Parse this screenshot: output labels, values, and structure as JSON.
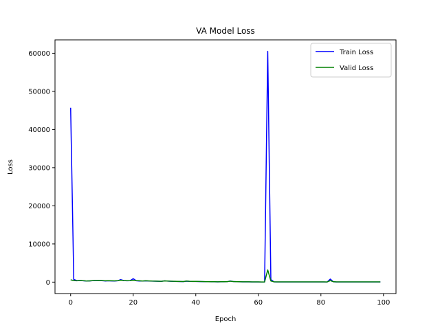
{
  "chart_data": {
    "type": "line",
    "title": "VA Model Loss",
    "xlabel": "Epoch",
    "ylabel": "Loss",
    "xlim": [
      -5,
      104
    ],
    "ylim": [
      -3000,
      63500
    ],
    "xticks": [
      0,
      20,
      40,
      60,
      80,
      100
    ],
    "yticks": [
      0,
      10000,
      20000,
      30000,
      40000,
      50000,
      60000
    ],
    "grid": false,
    "legend_position": "top-right",
    "x": [
      0,
      1,
      2,
      3,
      4,
      5,
      6,
      7,
      8,
      9,
      10,
      11,
      12,
      13,
      14,
      15,
      16,
      17,
      18,
      19,
      20,
      21,
      22,
      23,
      24,
      25,
      26,
      27,
      28,
      29,
      30,
      31,
      32,
      33,
      34,
      35,
      36,
      37,
      38,
      39,
      40,
      41,
      42,
      43,
      44,
      45,
      46,
      47,
      48,
      49,
      50,
      51,
      52,
      53,
      54,
      55,
      56,
      57,
      58,
      59,
      60,
      61,
      62,
      63,
      64,
      65,
      66,
      67,
      68,
      69,
      70,
      71,
      72,
      73,
      74,
      75,
      76,
      77,
      78,
      79,
      80,
      81,
      82,
      83,
      84,
      85,
      86,
      87,
      88,
      89,
      90,
      91,
      92,
      93,
      94,
      95,
      96,
      97,
      98,
      99
    ],
    "series": [
      {
        "name": "Train Loss",
        "color": "#0000ff",
        "values": [
          45700,
          700,
          400,
          450,
          350,
          300,
          320,
          380,
          420,
          450,
          380,
          300,
          350,
          320,
          300,
          350,
          650,
          400,
          350,
          380,
          900,
          350,
          300,
          280,
          330,
          300,
          260,
          240,
          220,
          200,
          330,
          260,
          230,
          200,
          180,
          150,
          130,
          250,
          200,
          180,
          180,
          160,
          140,
          120,
          100,
          90,
          80,
          70,
          80,
          90,
          100,
          300,
          150,
          100,
          80,
          70,
          60,
          60,
          50,
          50,
          40,
          30,
          30,
          60500,
          700,
          60,
          50,
          50,
          40,
          40,
          40,
          40,
          40,
          40,
          40,
          40,
          40,
          40,
          40,
          40,
          40,
          40,
          30,
          800,
          80,
          50,
          40,
          40,
          40,
          40,
          40,
          40,
          40,
          40,
          40,
          40,
          40,
          40,
          40,
          40
        ]
      },
      {
        "name": "Valid Loss",
        "color": "#008000",
        "values": [
          600,
          400,
          350,
          450,
          380,
          300,
          320,
          400,
          450,
          480,
          420,
          350,
          380,
          350,
          330,
          380,
          500,
          420,
          380,
          400,
          500,
          400,
          350,
          300,
          350,
          320,
          280,
          260,
          240,
          220,
          320,
          280,
          250,
          220,
          200,
          170,
          150,
          280,
          230,
          210,
          200,
          180,
          160,
          140,
          120,
          110,
          100,
          90,
          100,
          110,
          120,
          250,
          160,
          120,
          100,
          90,
          80,
          80,
          70,
          70,
          60,
          50,
          50,
          3200,
          300,
          80,
          70,
          70,
          60,
          60,
          60,
          60,
          60,
          60,
          60,
          60,
          60,
          60,
          60,
          60,
          60,
          60,
          50,
          400,
          100,
          70,
          60,
          60,
          60,
          60,
          60,
          60,
          60,
          60,
          60,
          60,
          60,
          60,
          60,
          60
        ]
      }
    ]
  }
}
